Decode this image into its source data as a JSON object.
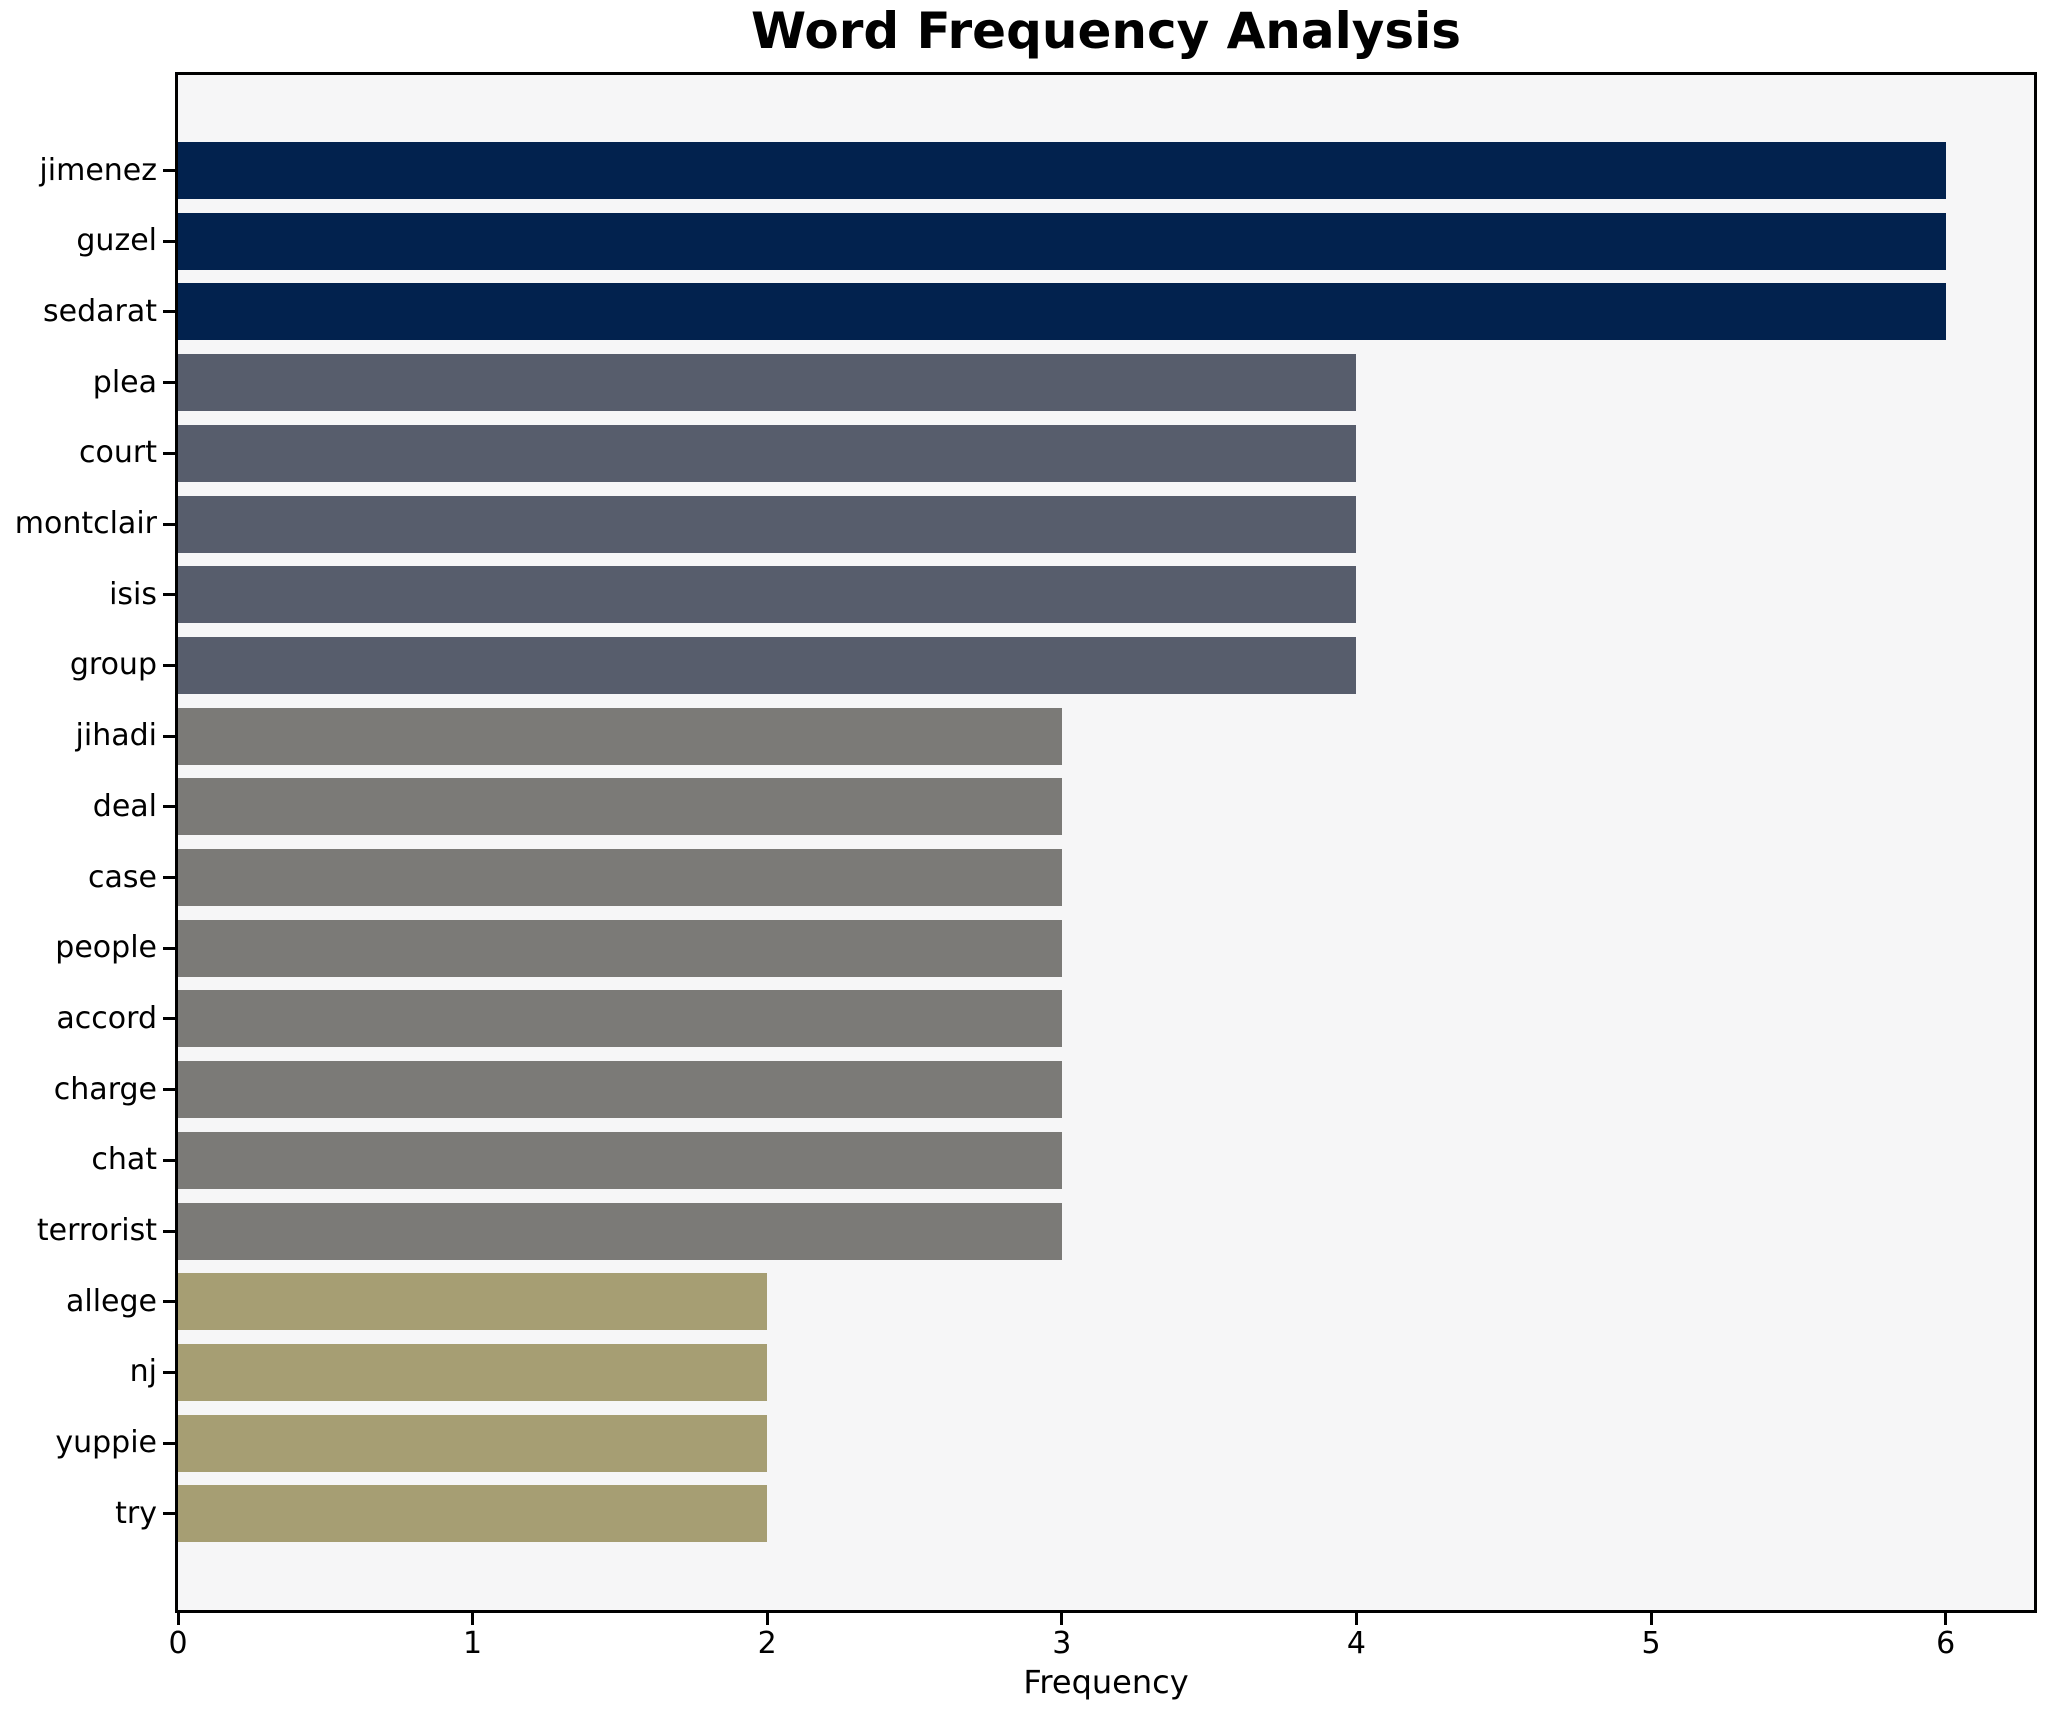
{
  "chart_data": {
    "type": "bar",
    "orientation": "horizontal",
    "title": "Word Frequency Analysis",
    "xlabel": "Frequency",
    "ylabel": "",
    "categories": [
      "jimenez",
      "guzel",
      "sedarat",
      "plea",
      "court",
      "montclair",
      "isis",
      "group",
      "jihadi",
      "deal",
      "case",
      "people",
      "accord",
      "charge",
      "chat",
      "terrorist",
      "allege",
      "nj",
      "yuppie",
      "try"
    ],
    "values": [
      6,
      6,
      6,
      4,
      4,
      4,
      4,
      4,
      3,
      3,
      3,
      3,
      3,
      3,
      3,
      3,
      2,
      2,
      2,
      2
    ],
    "bar_colors": [
      "#02224e",
      "#02224e",
      "#02224e",
      "#575d6c",
      "#575d6c",
      "#575d6c",
      "#575d6c",
      "#575d6c",
      "#7b7a77",
      "#7b7a77",
      "#7b7a77",
      "#7b7a77",
      "#7b7a77",
      "#7b7a77",
      "#7b7a77",
      "#7b7a77",
      "#a69e73",
      "#a69e73",
      "#a69e73",
      "#a69e73"
    ],
    "value_color_map": {
      "6": "#02224e",
      "4": "#575d6c",
      "3": "#7b7a77",
      "2": "#a69e73"
    },
    "x_ticks": [
      0,
      1,
      2,
      3,
      4,
      5,
      6
    ],
    "xlim": [
      0,
      6.3
    ],
    "grid": false,
    "legend": null,
    "plot_background": "#f6f6f7",
    "figure_background": "#ffffff",
    "spine_color": "#000000"
  }
}
